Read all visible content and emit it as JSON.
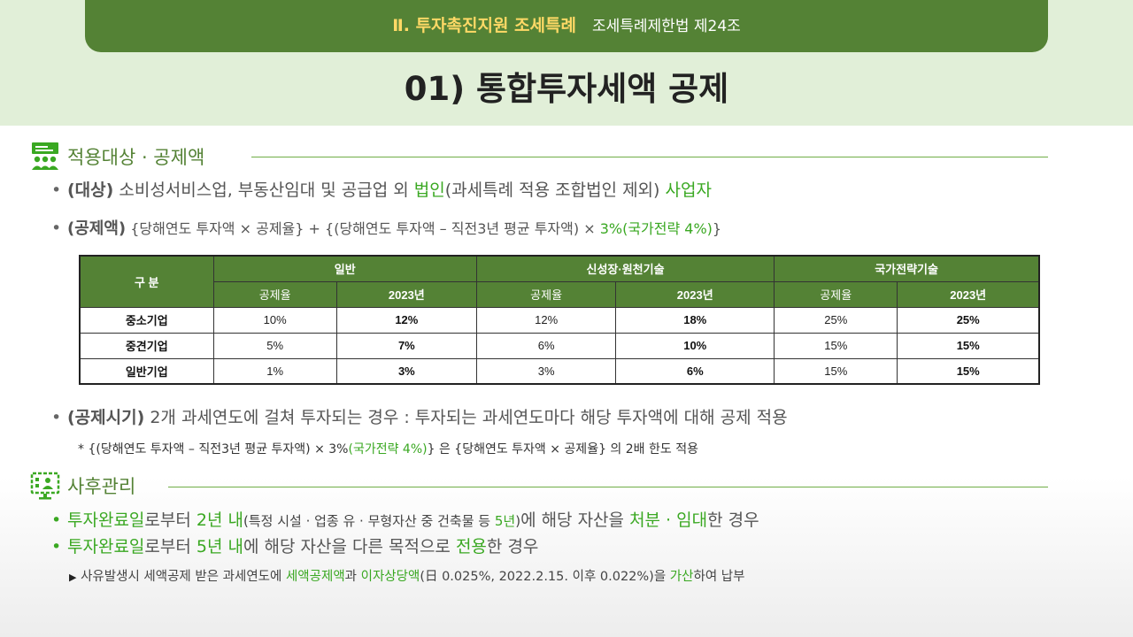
{
  "header": {
    "chapter": "Ⅱ. 투자촉진지원 조세특례",
    "law": "조세특례제한법 제24조"
  },
  "title": "01) 통합투자세액 공제",
  "section1": {
    "title": "적용대상 · 공제액",
    "icon": "people-presentation-icon",
    "target": {
      "label": "(대상)",
      "text1": " 소비성서비스업, 부동산임대 및 공급업 외 ",
      "hl1": "법인",
      "text2": "(과세특례 적용 조합법인 제외) ",
      "hl2": "사업자"
    },
    "amount": {
      "label": "(공제액)",
      "text1": " {당해연도 투자액 × 공제율} + {(당해연도 투자액 – 직전3년 평균 투자액) × ",
      "hl": "3%(국가전략 4%)",
      "text2": "}"
    },
    "table": {
      "corner": "구 분",
      "groups": [
        "일반",
        "신성장·원천기술",
        "국가전략기술"
      ],
      "sub_rate": "공제율",
      "sub_year": "2023년",
      "rows": [
        {
          "name": "중소기업",
          "v": [
            "10%",
            "12%",
            "12%",
            "18%",
            "25%",
            "25%"
          ]
        },
        {
          "name": "중견기업",
          "v": [
            "5%",
            "7%",
            "6%",
            "10%",
            "15%",
            "15%"
          ]
        },
        {
          "name": "일반기업",
          "v": [
            "1%",
            "3%",
            "3%",
            "6%",
            "15%",
            "15%"
          ]
        }
      ]
    },
    "timing": {
      "label": "(공제시기)",
      "text": " 2개 과세연도에 걸쳐 투자되는 경우 : 투자되는 과세연도마다 해당 투자액에 대해 공제 적용"
    },
    "note": {
      "text1": "* {(당해연도 투자액 – 직전3년 평균 투자액) × 3%",
      "hl": "(국가전략 4%)",
      "text2": "} 은 {당해연도 투자액 × 공제율} 의 2배 한도 적용"
    }
  },
  "section2": {
    "title": "사후관리",
    "icon": "monitor-checklist-icon",
    "line1": {
      "hl1": "투자완료일",
      "t1": "로부터 ",
      "hl2": "2년 내",
      "small1": "(특정 시설 · 업종 유 · 무형자산 중 건축물 등 ",
      "hl3": "5년",
      "small2": ")",
      "t2": "에 해당 자산을 ",
      "hl4": "처분 · 임대",
      "t3": "한 경우"
    },
    "line2": {
      "hl1": "투자완료일",
      "t1": "로부터 ",
      "hl2": "5년 내",
      "t2": "에 해당 자산을 다른 목적으로 ",
      "hl3": "전용",
      "t3": "한 경우"
    },
    "note": {
      "arrow": "▶",
      "t1": " 사유발생시 세액공제 받은 과세연도에 ",
      "hl1": "세액공제액",
      "t2": "과 ",
      "hl2": "이자상당액",
      "t3": "(日 0.025%, 2022.2.15. 이후 0.022%)을 ",
      "hl3": "가산",
      "t4": "하여 납부"
    }
  },
  "colors": {
    "green_dark": "#548235",
    "green_accent": "#3aa822",
    "band": "#e1efd8",
    "chapter_yellow": "#ffd966"
  }
}
